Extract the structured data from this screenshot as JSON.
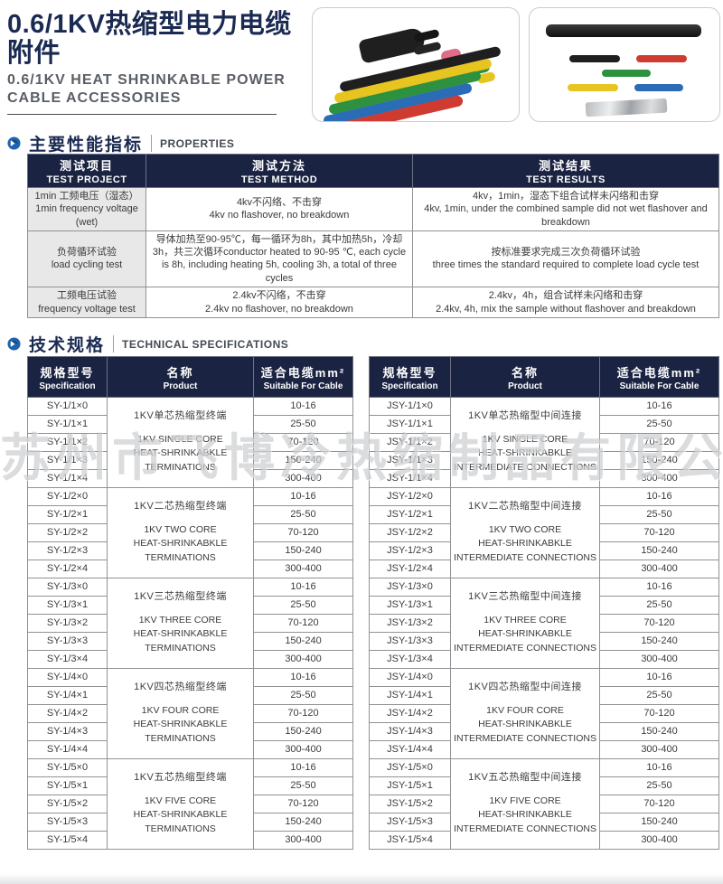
{
  "page": {
    "title_cn": "0.6/1KV热缩型电力电缆附件",
    "title_en_1": "0.6/1KV HEAT SHRINKABLE POWER",
    "title_en_2": "CABLE ACCESSORIES",
    "watermark": "苏州市飞博冷热缩制品有限公司"
  },
  "colors": {
    "navy_header": "#1b2342",
    "title_navy": "#1b2a52",
    "accent_blue": "#1e63ae",
    "cell_gray": "#e8e8e8",
    "tube_red": "#cf3b31",
    "tube_blue": "#2a6cb5",
    "tube_green": "#2d9140",
    "tube_yellow": "#e7c41f",
    "tube_black": "#1f1f1f",
    "tube_pink": "#e06c8a"
  },
  "icons": {
    "section_bullet": "blue-sphere-arrow-icon"
  },
  "sections": {
    "properties": {
      "cn": "主要性能指标",
      "en": "PROPERTIES"
    },
    "specifications": {
      "cn": "技术规格",
      "en": "TECHNICAL SPECIFICATIONS"
    }
  },
  "properties_table": {
    "col1": {
      "cn": "测试项目",
      "en": "TEST PROJECT"
    },
    "col2": {
      "cn": "测试方法",
      "en": "TEST METHOD"
    },
    "col3": {
      "cn": "测试结果",
      "en": "TEST RESULTS"
    },
    "rows": [
      {
        "project_cn": "1min 工频电压（湿态）",
        "project_en": "1min frequency voltage (wet)",
        "method_cn": "4kv不闪络、不击穿",
        "method_en": "4kv no flashover, no breakdown",
        "result_cn": "4kv，1min，湿态下组合试样未闪络和击穿",
        "result_en": "4kv, 1min, under the combined sample did not wet flashover and breakdown"
      },
      {
        "project_cn": "负荷循环试验",
        "project_en": "load cycling test",
        "method_cn": "导体加热至90-95℃，每一循环为8h，其中加热5h，冷却3h，",
        "method_en": "共三次循环conductor heated to 90-95 ℃, each cycle is 8h, including heating 5h, cooling 3h, a total of three cycles",
        "result_cn": "按标准要求完成三次负荷循环试验",
        "result_en": "three times the standard required to complete load cycle test"
      },
      {
        "project_cn": "工频电压试验",
        "project_en": "frequency voltage test",
        "method_cn": "2.4kv不闪络，不击穿",
        "method_en": "2.4kv no flashover, no breakdown",
        "result_cn": "2.4kv，4h，组合试样未闪络和击穿",
        "result_en": "2.4kv, 4h, mix the sample without flashover and breakdown"
      }
    ]
  },
  "spec_tables": {
    "headers": {
      "spec": {
        "cn": "规格型号",
        "en": "Specification"
      },
      "product": {
        "cn": "名称",
        "en": "Product"
      },
      "cable": {
        "cn": "适合电缆mm²",
        "en": "Suitable For Cable"
      }
    },
    "sizes": [
      "10-16",
      "25-50",
      "70-120",
      "150-240",
      "300-400"
    ],
    "left": {
      "groups": [
        {
          "models": [
            "SY-1/1×0",
            "SY-1/1×1",
            "SY-1/1×2",
            "SY-1/1×3",
            "SY-1/1×4"
          ],
          "cn": "1KV单芯热缩型终端",
          "en": [
            "1KV SINGLE CORE",
            "HEAT-SHRINKABKLE",
            "TERMINATIONS"
          ]
        },
        {
          "models": [
            "SY-1/2×0",
            "SY-1/2×1",
            "SY-1/2×2",
            "SY-1/2×3",
            "SY-1/2×4"
          ],
          "cn": "1KV二芯热缩型终端",
          "en": [
            "1KV TWO CORE",
            "HEAT-SHRINKABKLE",
            "TERMINATIONS"
          ]
        },
        {
          "models": [
            "SY-1/3×0",
            "SY-1/3×1",
            "SY-1/3×2",
            "SY-1/3×3",
            "SY-1/3×4"
          ],
          "cn": "1KV三芯热缩型终端",
          "en": [
            "1KV THREE CORE",
            "HEAT-SHRINKABKLE",
            "TERMINATIONS"
          ]
        },
        {
          "models": [
            "SY-1/4×0",
            "SY-1/4×1",
            "SY-1/4×2",
            "SY-1/4×3",
            "SY-1/4×4"
          ],
          "cn": "1KV四芯热缩型终端",
          "en": [
            "1KV FOUR CORE",
            "HEAT-SHRINKABKLE",
            "TERMINATIONS"
          ]
        },
        {
          "models": [
            "SY-1/5×0",
            "SY-1/5×1",
            "SY-1/5×2",
            "SY-1/5×3",
            "SY-1/5×4"
          ],
          "cn": "1KV五芯热缩型终端",
          "en": [
            "1KV FIVE CORE",
            "HEAT-SHRINKABKLE",
            "TERMINATIONS"
          ]
        }
      ]
    },
    "right": {
      "groups": [
        {
          "models": [
            "JSY-1/1×0",
            "JSY-1/1×1",
            "JSY-1/1×2",
            "JSY-1/1×3",
            "JSY-1/1×4"
          ],
          "cn": "1KV单芯热缩型中间连接",
          "en": [
            "1KV SINGLE CORE",
            "HEAT-SHRINKABKLE",
            "INTERMEDIATE CONNECTIONS"
          ]
        },
        {
          "models": [
            "JSY-1/2×0",
            "JSY-1/2×1",
            "JSY-1/2×2",
            "JSY-1/2×3",
            "JSY-1/2×4"
          ],
          "cn": "1KV二芯热缩型中间连接",
          "en": [
            "1KV TWO CORE",
            "HEAT-SHRINKABKLE",
            "INTERMEDIATE CONNECTIONS"
          ]
        },
        {
          "models": [
            "JSY-1/3×0",
            "JSY-1/3×1",
            "JSY-1/3×2",
            "JSY-1/3×3",
            "JSY-1/3×4"
          ],
          "cn": "1KV三芯热缩型中间连接",
          "en": [
            "1KV THREE CORE",
            "HEAT-SHRINKABKLE",
            "INTERMEDIATE CONNECTIONS"
          ]
        },
        {
          "models": [
            "JSY-1/4×0",
            "JSY-1/4×1",
            "JSY-1/4×2",
            "JSY-1/4×3",
            "JSY-1/4×4"
          ],
          "cn": "1KV四芯热缩型中间连接",
          "en": [
            "1KV FOUR CORE",
            "HEAT-SHRINKABKLE",
            "INTERMEDIATE CONNECTIONS"
          ]
        },
        {
          "models": [
            "JSY-1/5×0",
            "JSY-1/5×1",
            "JSY-1/5×2",
            "JSY-1/5×3",
            "JSY-1/5×4"
          ],
          "cn": "1KV五芯热缩型中间连接",
          "en": [
            "1KV FIVE CORE",
            "HEAT-SHRINKABKLE",
            "INTERMEDIATE CONNECTIONS"
          ]
        }
      ]
    }
  }
}
